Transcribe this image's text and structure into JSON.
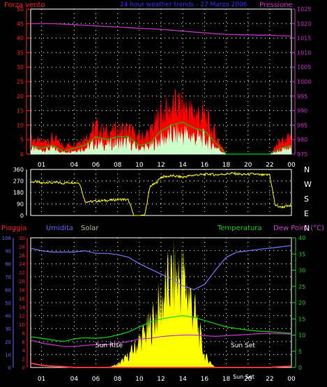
{
  "title": "24 hour weather trends - 27 Marzo 2006",
  "colors": {
    "background": "#000000",
    "axis": "#ffffff",
    "grid": "#ffffff",
    "wind_gust": "#ff0000",
    "wind_avg": "#00cc00",
    "wind_light": "#ccffcc",
    "pressure": "#cc33cc",
    "direction": "#ffff00",
    "rain": "#ff3333",
    "humidity": "#7777ff",
    "solar": "#ffff00",
    "temperature": "#00dd00",
    "dew_point": "#cc33cc",
    "left_axis_red": "#ff2222",
    "left_axis_blue": "#6666ff",
    "right_axis_green": "#22cc22",
    "right_axis_pink": "#cc44cc"
  },
  "x_ticks": [
    "01",
    "04",
    "06",
    "08",
    "10",
    "12",
    "14",
    "16",
    "18",
    "20",
    "22",
    "00"
  ],
  "chart_data": [
    {
      "type": "line",
      "panel": "wind_pressure",
      "title": "24 hour weather trends - 27 Marzo 2006",
      "left_label": "Forza vento",
      "right_label": "Pressione",
      "left_ticks": [
        0,
        5,
        10,
        15,
        20,
        25,
        30,
        35,
        40,
        45,
        50
      ],
      "right_ticks": [
        975,
        980,
        985,
        990,
        995,
        1000,
        1005,
        1010,
        1015,
        1020,
        1025
      ],
      "ylim_left": [
        0,
        50
      ],
      "ylim_right": [
        975,
        1025
      ],
      "x": [
        0,
        1,
        2,
        3,
        4,
        5,
        6,
        7,
        8,
        9,
        10,
        11,
        12,
        13,
        14,
        15,
        16,
        17,
        18,
        19,
        20,
        21,
        22,
        23,
        24
      ],
      "series": [
        {
          "name": "Forza vento",
          "role": "gust",
          "values": [
            6,
            4,
            6,
            3,
            4,
            6,
            10,
            8,
            9,
            9,
            6,
            8,
            15,
            17,
            18,
            15,
            14,
            7,
            0,
            0,
            0,
            0,
            0,
            5,
            6
          ]
        },
        {
          "name": "Forza vento",
          "role": "avg",
          "values": [
            3,
            2,
            3,
            1,
            2,
            3,
            6,
            5,
            6,
            6,
            3,
            4,
            8,
            10,
            11,
            9,
            8,
            4,
            0,
            0,
            0,
            0,
            0,
            2,
            3
          ]
        },
        {
          "name": "Pressione",
          "values": [
            1020,
            1020,
            1020,
            1019.8,
            1019.6,
            1019.4,
            1019.2,
            1019,
            1018.8,
            1018.6,
            1018.4,
            1018.2,
            1018,
            1017.7,
            1017.4,
            1017.1,
            1016.8,
            1016.5,
            1016.3,
            1016.2,
            1016.1,
            1016,
            1016,
            1015.8,
            1015.7
          ]
        }
      ]
    },
    {
      "type": "line",
      "panel": "wind_direction",
      "left_ticks": [
        0,
        90,
        180,
        270,
        360
      ],
      "right_labels": [
        "N",
        "W",
        "S",
        "E",
        "N"
      ],
      "ylim": [
        0,
        360
      ],
      "x": [
        0,
        0.5,
        1,
        1.5,
        2,
        2.5,
        3,
        3.5,
        4,
        4.5,
        5,
        5.5,
        6,
        6.5,
        7,
        7.5,
        8,
        8.5,
        9,
        9.5,
        10,
        10.5,
        11,
        11.5,
        12,
        12.5,
        13,
        13.5,
        14,
        14.5,
        15,
        15.5,
        16,
        16.5,
        17,
        17.5,
        18,
        18.5,
        19,
        19.5,
        20,
        20.5,
        21,
        21.5,
        22,
        22.5,
        23,
        23.5,
        24
      ],
      "series": [
        {
          "name": "Direzione",
          "values": [
            260,
            265,
            250,
            262,
            255,
            258,
            252,
            260,
            258,
            255,
            110,
            108,
            112,
            115,
            118,
            120,
            125,
            126,
            120,
            0,
            0,
            5,
            230,
            250,
            300,
            305,
            310,
            305,
            300,
            308,
            315,
            318,
            320,
            325,
            318,
            322,
            325,
            330,
            325,
            320,
            322,
            325,
            318,
            315,
            320,
            80,
            65,
            70,
            75
          ]
        }
      ]
    },
    {
      "type": "line",
      "panel": "weather",
      "header_labels": [
        "Pioggia",
        "Umidita",
        "Solar",
        "Temperatura",
        "Dew Point (°C)"
      ],
      "left_ticks_humidity": [
        0,
        10,
        20,
        30,
        40,
        50,
        60,
        70,
        80,
        90,
        100
      ],
      "left_ticks_rain": [
        0,
        2,
        4,
        6,
        8,
        10,
        12,
        14,
        16,
        18,
        20,
        22,
        24,
        26,
        28,
        30
      ],
      "right_ticks": [
        0,
        5,
        10,
        15,
        20,
        25,
        30,
        35,
        40
      ],
      "ylim_humidity": [
        0,
        100
      ],
      "ylim_temp": [
        0,
        40
      ],
      "annotations": [
        "Sun Rise",
        "Sun Set",
        "Sun Set"
      ],
      "x": [
        0,
        1,
        2,
        3,
        4,
        5,
        6,
        7,
        8,
        9,
        10,
        11,
        12,
        13,
        14,
        15,
        16,
        17,
        18,
        19,
        20,
        21,
        22,
        23,
        24
      ],
      "series": [
        {
          "name": "Umidita",
          "values": [
            92,
            90,
            89,
            89,
            89,
            90,
            88,
            88,
            87,
            85,
            80,
            76,
            72,
            68,
            63,
            60,
            64,
            75,
            85,
            89,
            90,
            91,
            92,
            93,
            94
          ]
        },
        {
          "name": "Temperatura",
          "values": [
            9.5,
            9,
            8.5,
            8,
            8.8,
            9.2,
            9,
            9.3,
            10,
            11,
            12.5,
            14,
            15,
            15.5,
            16,
            15.5,
            14.5,
            13.5,
            12.5,
            12,
            11.5,
            11.2,
            11,
            10.8,
            10.5
          ]
        },
        {
          "name": "Dew Point",
          "values": [
            8.5,
            7.5,
            7,
            6.5,
            6.5,
            6.8,
            7,
            7,
            7.5,
            8,
            8.8,
            9,
            9.5,
            9.8,
            10,
            10,
            9.8,
            9.6,
            9.8,
            10,
            10.2,
            10.4,
            10.5,
            10.4,
            10.3
          ]
        },
        {
          "name": "Solar",
          "values": [
            0,
            0,
            0,
            0,
            0,
            0,
            0,
            0,
            1,
            4,
            9,
            14,
            22,
            30,
            31,
            20,
            4,
            0,
            0,
            0,
            0,
            0,
            0,
            0,
            0
          ]
        },
        {
          "name": "Pioggia",
          "values": [
            1,
            0.5,
            0.3,
            0.2,
            0,
            0,
            0,
            0,
            0,
            0,
            0,
            0,
            0,
            0,
            0,
            0,
            0,
            0,
            0,
            0,
            0,
            0,
            0,
            0.2,
            0.3
          ]
        }
      ]
    }
  ]
}
